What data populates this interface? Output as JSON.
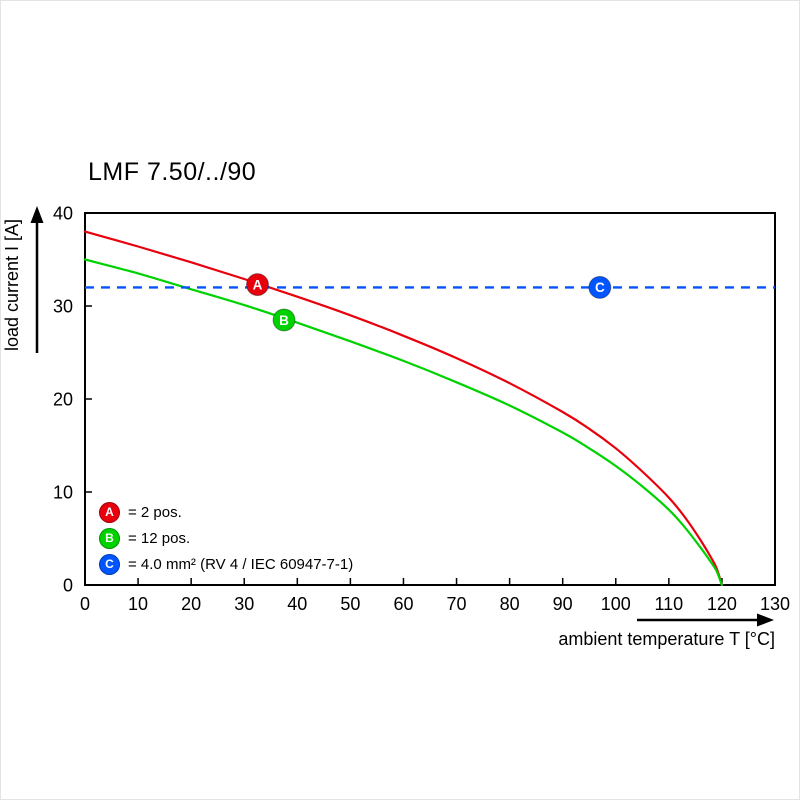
{
  "title": "LMF 7.50/../90",
  "chart_data": {
    "type": "line",
    "title": "LMF 7.50/../90",
    "xlabel": "ambient temperature T [°C]",
    "ylabel": "load current I [A]",
    "xlim": [
      0,
      130
    ],
    "ylim": [
      0,
      40
    ],
    "xticks": [
      0,
      10,
      20,
      30,
      40,
      50,
      60,
      70,
      80,
      90,
      100,
      110,
      120,
      130
    ],
    "yticks": [
      0,
      10,
      20,
      30,
      40
    ],
    "grid": false,
    "legend_position": "inside bottom-left",
    "series": [
      {
        "name": "A",
        "label": "= 2 pos.",
        "color": "#e8000d",
        "points": [
          [
            0,
            38
          ],
          [
            10,
            36.4
          ],
          [
            20,
            34.7
          ],
          [
            30,
            32.9
          ],
          [
            40,
            31.0
          ],
          [
            50,
            29.0
          ],
          [
            60,
            26.8
          ],
          [
            70,
            24.4
          ],
          [
            80,
            21.7
          ],
          [
            90,
            18.6
          ],
          [
            95,
            16.8
          ],
          [
            100,
            14.7
          ],
          [
            105,
            12.2
          ],
          [
            110,
            9.4
          ],
          [
            113,
            7.3
          ],
          [
            116,
            4.8
          ],
          [
            118,
            2.9
          ],
          [
            119,
            1.8
          ],
          [
            120,
            0
          ]
        ]
      },
      {
        "name": "B",
        "label": "= 12 pos.",
        "color": "#00d200",
        "points": [
          [
            0,
            35
          ],
          [
            10,
            33.5
          ],
          [
            20,
            31.8
          ],
          [
            30,
            30.1
          ],
          [
            40,
            28.2
          ],
          [
            50,
            26.2
          ],
          [
            60,
            24.1
          ],
          [
            70,
            21.8
          ],
          [
            80,
            19.3
          ],
          [
            90,
            16.4
          ],
          [
            95,
            14.7
          ],
          [
            100,
            12.8
          ],
          [
            105,
            10.6
          ],
          [
            110,
            8.1
          ],
          [
            113,
            6.2
          ],
          [
            116,
            4.0
          ],
          [
            118,
            2.4
          ],
          [
            119,
            1.5
          ],
          [
            120,
            0
          ]
        ]
      }
    ],
    "reference_line": {
      "name": "C",
      "label": "= 4.0 mm² (RV 4 / IEC 60947-7-1)",
      "color": "#0055ff",
      "value": 32,
      "style": "dashed"
    },
    "markers": [
      {
        "letter": "A",
        "x": 32.5,
        "y": 32.3,
        "color": "#e8000d"
      },
      {
        "letter": "B",
        "x": 37.5,
        "y": 28.5,
        "color": "#00d200"
      },
      {
        "letter": "C",
        "x": 97,
        "y": 32,
        "color": "#0055ff"
      }
    ],
    "legend": [
      {
        "letter": "A",
        "color": "#e8000d",
        "text": "= 2 pos."
      },
      {
        "letter": "B",
        "color": "#00d200",
        "text": "= 12 pos."
      },
      {
        "letter": "C",
        "color": "#0055ff",
        "text": "= 4.0 mm² (RV 4 / IEC 60947-7-1)"
      }
    ]
  }
}
